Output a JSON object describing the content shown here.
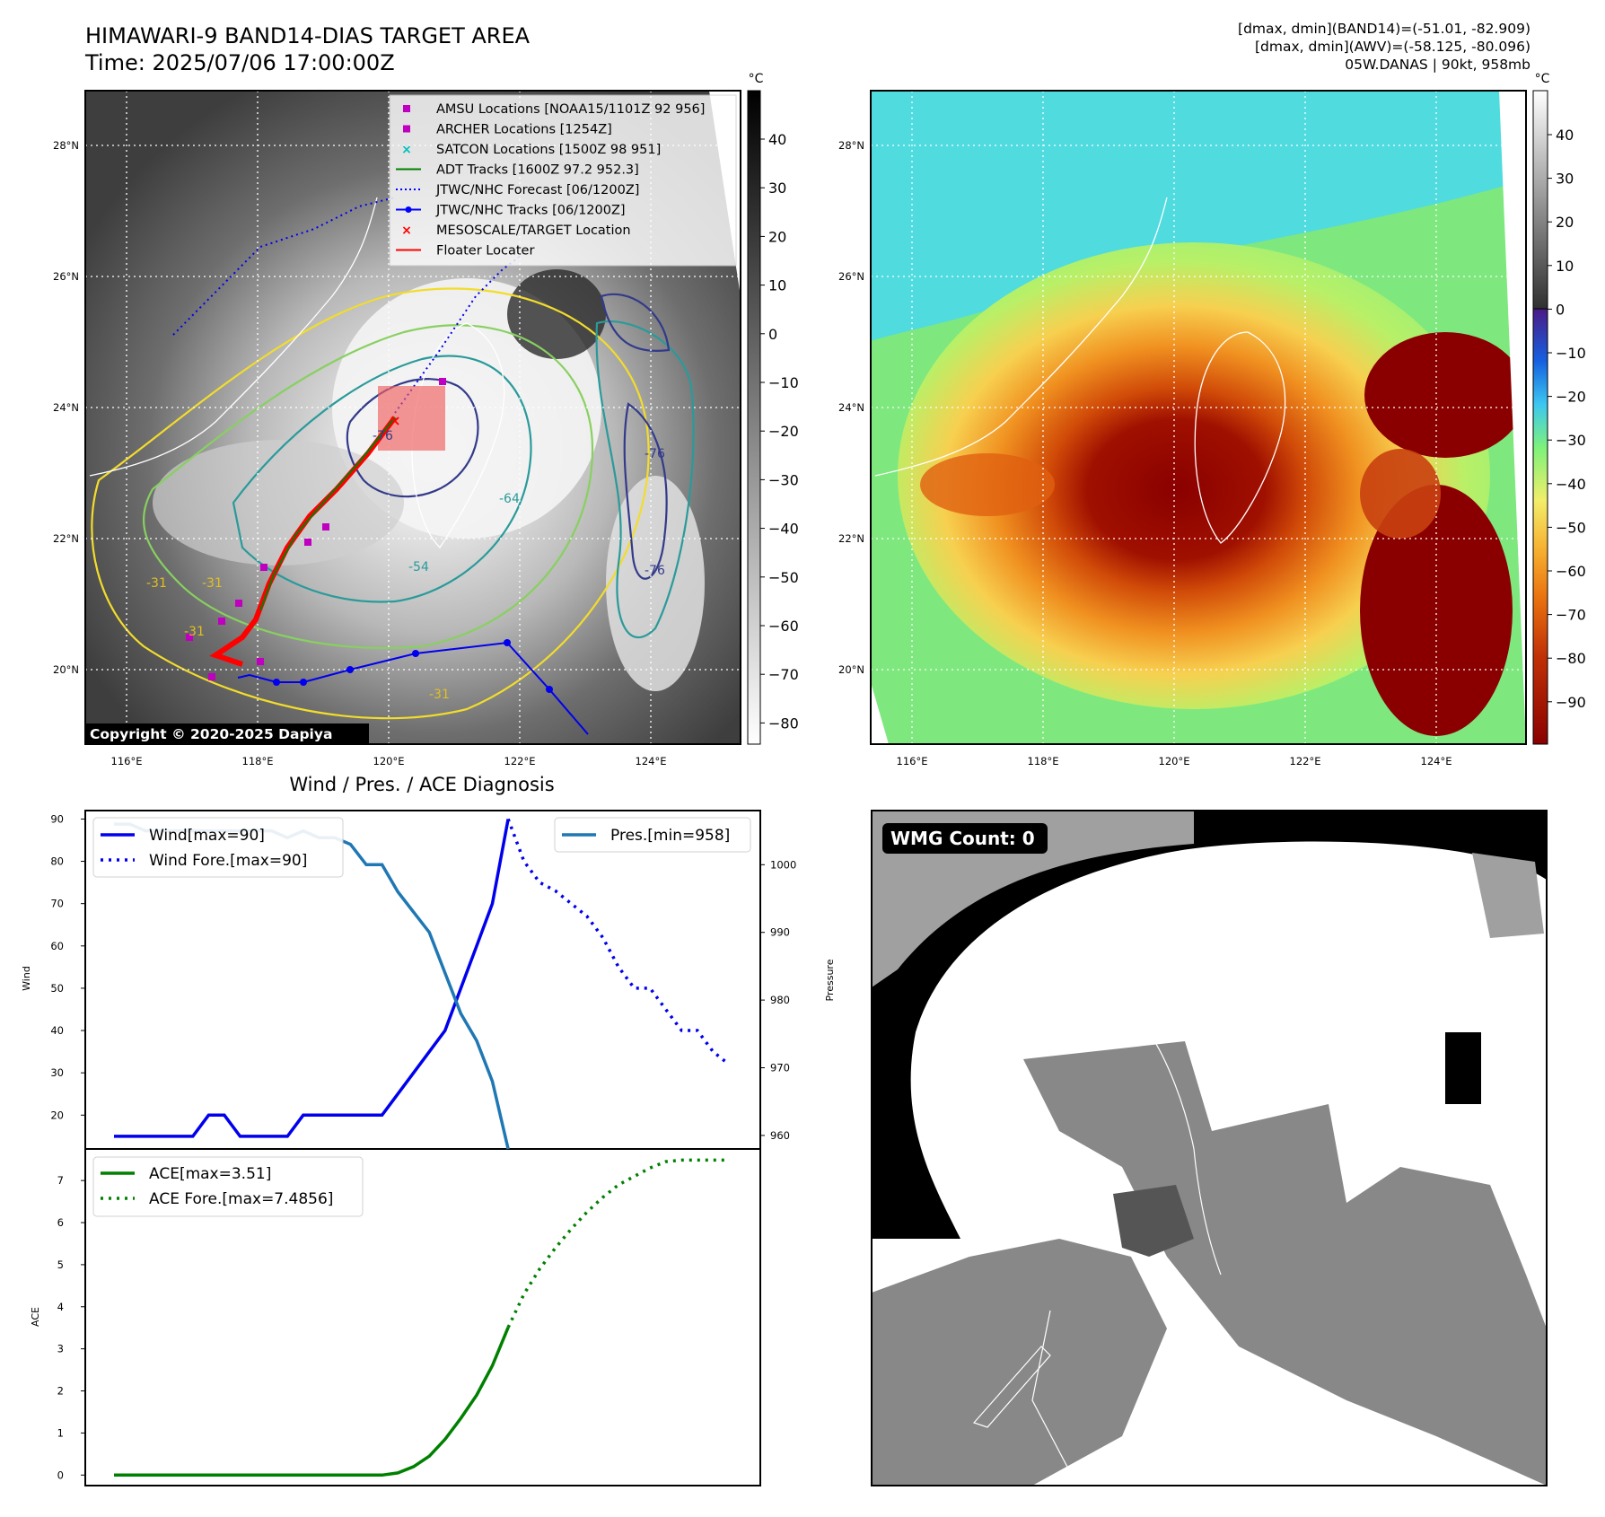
{
  "header": {
    "title": "HIMAWARI-9 BAND14-DIAS TARGET AREA",
    "time": "Time: 2025/07/06 17:00:00Z",
    "info_lines": [
      "[dmax, dmin](BAND14)=(-51.01, -82.909)",
      "[dmax, dmin](AWV)=(-58.125, -80.096)",
      "05W.DANAS | 90kt, 958mb"
    ]
  },
  "maps": {
    "lat_labels": [
      "28°N",
      "26°N",
      "24°N",
      "22°N",
      "20°N"
    ],
    "lon_labels": [
      "116°E",
      "118°E",
      "120°E",
      "122°E",
      "124°E"
    ],
    "copyright": "Copyright © 2020-2025 Dapiya",
    "legend": [
      {
        "label": "AMSU Locations [NOAA15/1101Z 92 956]",
        "color": "#c000c0",
        "marker": "square"
      },
      {
        "label": "ARCHER Locations [1254Z]",
        "color": "#c000c0",
        "marker": "square"
      },
      {
        "label": "SATCON Locations [1500Z 98 951]",
        "color": "#00c0c0",
        "marker": "x"
      },
      {
        "label": "ADT Tracks [1600Z 97.2 952.3]",
        "color": "#008000",
        "marker": "line"
      },
      {
        "label": "JTWC/NHC Forecast [06/1200Z]",
        "color": "#0000ff",
        "marker": "dotted"
      },
      {
        "label": "JTWC/NHC Tracks [06/1200Z]",
        "color": "#0000ff",
        "marker": "line-dot"
      },
      {
        "label": "MESOSCALE/TARGET Location",
        "color": "#ff0000",
        "marker": "x"
      },
      {
        "label": "Floater Locater",
        "color": "#ff0000",
        "marker": "line"
      }
    ],
    "contour_labels": [
      "-31",
      "-31",
      "-31",
      "-31",
      "-54",
      "-64",
      "-76",
      "-76",
      "-76"
    ],
    "colorbar_left": {
      "unit": "°C",
      "ticks": [
        "40",
        "30",
        "20",
        "10",
        "0",
        "−10",
        "−20",
        "−30",
        "−40",
        "−50",
        "−60",
        "−70",
        "−80"
      ]
    },
    "colorbar_right": {
      "unit": "°C",
      "ticks": [
        "40",
        "30",
        "20",
        "10",
        "0",
        "−10",
        "−20",
        "−30",
        "−40",
        "−50",
        "−60",
        "−70",
        "−80",
        "−90"
      ]
    },
    "wmg_label": "WMG Count: 0"
  },
  "chart_data": [
    {
      "type": "line",
      "title": "Wind / Pres. / ACE Diagnosis",
      "ylabel": "Wind",
      "ylabel_right": "Pressure",
      "ylim": [
        12,
        92
      ],
      "ylim_right": [
        958,
        1008
      ],
      "yticks": [
        20,
        30,
        40,
        50,
        60,
        70,
        80,
        90
      ],
      "yticks_right": [
        960,
        970,
        980,
        990,
        1000
      ],
      "legend_left": [
        "Wind[max=90]",
        "Wind Fore.[max=90]"
      ],
      "legend_right": [
        "Pres.[min=958]"
      ],
      "series": [
        {
          "name": "Wind[max=90]",
          "style": "solid",
          "color": "#0000ee",
          "axis": "left",
          "x": [
            0,
            1,
            2,
            3,
            4,
            5,
            6,
            7,
            8,
            9,
            10,
            11,
            12,
            13,
            14,
            15,
            16,
            17,
            18,
            19,
            20,
            21,
            22,
            23,
            24,
            25
          ],
          "values": [
            15,
            15,
            15,
            15,
            15,
            15,
            20,
            20,
            15,
            15,
            15,
            15,
            20,
            20,
            20,
            20,
            20,
            20,
            25,
            30,
            35,
            40,
            50,
            60,
            70,
            90
          ]
        },
        {
          "name": "Wind Fore.[max=90]",
          "style": "dotted",
          "color": "#0000ee",
          "axis": "left",
          "x": [
            25,
            26,
            27,
            28,
            29,
            30,
            31,
            32,
            33,
            34,
            35,
            36,
            37,
            38,
            39
          ],
          "values": [
            90,
            80,
            75,
            73,
            70,
            67,
            62,
            55,
            50,
            50,
            45,
            40,
            40,
            35,
            32
          ]
        },
        {
          "name": "Pres.[min=958]",
          "style": "solid",
          "color": "#1f77b4",
          "axis": "right",
          "x": [
            0,
            1,
            2,
            3,
            4,
            5,
            6,
            7,
            8,
            9,
            10,
            11,
            12,
            13,
            14,
            15,
            16,
            17,
            18,
            19,
            20,
            21,
            22,
            23,
            24,
            25
          ],
          "values": [
            1006,
            1006,
            1005,
            1005,
            1005,
            1005,
            1005,
            1005,
            1005,
            1005,
            1005,
            1004,
            1005,
            1004,
            1004,
            1003,
            1000,
            1000,
            996,
            993,
            990,
            984,
            978,
            974,
            968,
            958
          ]
        }
      ]
    },
    {
      "type": "line",
      "ylabel": "ACE",
      "ylim": [
        -0.25,
        7.75
      ],
      "yticks": [
        0,
        1,
        2,
        3,
        4,
        5,
        6,
        7
      ],
      "legend": [
        "ACE[max=3.51]",
        "ACE Fore.[max=7.4856]"
      ],
      "series": [
        {
          "name": "ACE[max=3.51]",
          "style": "solid",
          "color": "#008000",
          "x": [
            0,
            5,
            10,
            15,
            16,
            17,
            18,
            19,
            20,
            21,
            22,
            23,
            24,
            25
          ],
          "values": [
            0,
            0,
            0,
            0,
            0,
            0,
            0.05,
            0.2,
            0.45,
            0.85,
            1.35,
            1.9,
            2.6,
            3.51
          ]
        },
        {
          "name": "ACE Fore.[max=7.4856]",
          "style": "dotted",
          "color": "#008000",
          "x": [
            25,
            26,
            27,
            28,
            29,
            30,
            31,
            32,
            33,
            34,
            35,
            36,
            37,
            38,
            39
          ],
          "values": [
            3.51,
            4.3,
            4.9,
            5.4,
            5.85,
            6.25,
            6.6,
            6.9,
            7.1,
            7.3,
            7.45,
            7.4856,
            7.4856,
            7.4856,
            7.4856
          ]
        }
      ]
    }
  ]
}
